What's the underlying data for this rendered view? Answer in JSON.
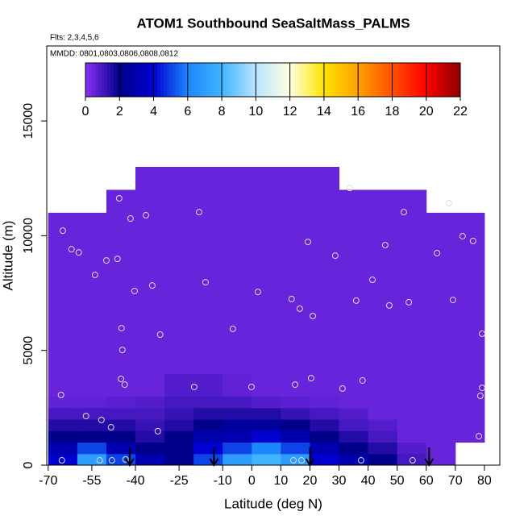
{
  "chart_data": {
    "type": "heatmap",
    "title": "ATOM1 Southbound SeaSaltMass_PALMS",
    "subtitle_flights": "Flts: 2,3,4,5,6",
    "subtitle_dates": "MMDD: 0801,0803,0806,0808,0812",
    "xlabel": "Latitude (deg N)",
    "ylabel": "Altitude (m)",
    "xlim": [
      -70.5,
      85.3
    ],
    "ylim": [
      0,
      18270
    ],
    "xticks": [
      -70,
      -55,
      -40,
      -25,
      -10,
      0,
      10,
      20,
      30,
      40,
      50,
      60,
      70,
      80
    ],
    "yticks": [
      0,
      5000,
      10000,
      15000
    ],
    "x_edges": [
      -70,
      -60,
      -50,
      -40,
      -30,
      -20,
      -10,
      0,
      10,
      20,
      30,
      40,
      50,
      60,
      70,
      80
    ],
    "y_edges": [
      0,
      500,
      1000,
      1500,
      2000,
      2500,
      3000,
      4000,
      6000,
      8000,
      10000,
      11000,
      12000,
      13000
    ],
    "z": [
      [
        4,
        7,
        5,
        3,
        2,
        5,
        7,
        8,
        7,
        4,
        3,
        2,
        1,
        0.5,
        null
      ],
      [
        3,
        5,
        3,
        2,
        2,
        4,
        5,
        6,
        5,
        3,
        2,
        1.5,
        0.8,
        0.5,
        null
      ],
      [
        2,
        2,
        2,
        1.5,
        2,
        3,
        3,
        4,
        3,
        2,
        1.5,
        1,
        0.5,
        0.5,
        0.5
      ],
      [
        1.5,
        1.5,
        1.5,
        1.2,
        1.5,
        2,
        2.5,
        2.5,
        2,
        1.5,
        1,
        0.8,
        0.5,
        0.5,
        0.5
      ],
      [
        1,
        1,
        1,
        1,
        1.2,
        1.5,
        1.5,
        1.5,
        1.2,
        1,
        0.8,
        0.5,
        0.5,
        0.5,
        0.5
      ],
      [
        0.6,
        0.6,
        0.7,
        0.8,
        1,
        1,
        1,
        0.8,
        0.7,
        0.6,
        0.5,
        0.5,
        0.5,
        0.5,
        0.5
      ],
      [
        0.5,
        0.5,
        0.5,
        0.5,
        0.8,
        0.8,
        0.6,
        0.5,
        0.5,
        0.5,
        0.5,
        0.5,
        0.5,
        0.5,
        0.5
      ],
      [
        0.5,
        0.5,
        0.5,
        0.5,
        0.5,
        0.5,
        0.5,
        0.5,
        0.5,
        0.5,
        0.5,
        0.5,
        0.5,
        0.5,
        0.5
      ],
      [
        0.5,
        0.5,
        0.5,
        0.5,
        0.5,
        0.5,
        0.5,
        0.5,
        0.5,
        0.5,
        0.5,
        0.5,
        0.5,
        0.5,
        0.5
      ],
      [
        0.5,
        0.5,
        0.5,
        0.5,
        0.5,
        0.5,
        0.5,
        0.5,
        0.5,
        0.5,
        0.5,
        0.5,
        0.5,
        0.5,
        0.5
      ],
      [
        0.5,
        0.5,
        0.5,
        0.5,
        0.5,
        0.5,
        0.5,
        0.5,
        0.5,
        0.5,
        0.5,
        0.5,
        0.5,
        0.5,
        0.5
      ],
      [
        null,
        null,
        0.5,
        0.5,
        0.5,
        0.5,
        0.5,
        0.5,
        0.5,
        0.5,
        0.5,
        0.5,
        0.5,
        null,
        null
      ],
      [
        null,
        null,
        null,
        0.5,
        0.5,
        0.5,
        0.5,
        0.5,
        0.5,
        0.5,
        null,
        null,
        null,
        null,
        null
      ]
    ],
    "samples": {
      "color": "#dddddd",
      "x": [
        -65.0,
        -65.6,
        -62.0,
        -59.5,
        -57.0,
        -53.9,
        -51.7,
        -50.0,
        -48.4,
        -46.2,
        -45.6,
        -45.0,
        -44.8,
        -44.5,
        -43.7,
        -43.4,
        -48.1,
        -52.3,
        -65.3,
        -41.7,
        -40.3,
        -36.4,
        -34.2,
        -32.3,
        -31.5,
        -19.8,
        -18.1,
        -15.9,
        -6.5,
        -0.1,
        2.1,
        13.7,
        14.9,
        16.5,
        17.1,
        14.3,
        20.4,
        21.0,
        19.3,
        28.7,
        31.2,
        33.7,
        35.9,
        38.1,
        37.6,
        41.5,
        45.9,
        47.3,
        52.3,
        54.0,
        55.3,
        63.7,
        67.8,
        69.2,
        72.5,
        76.1,
        78.1,
        78.6,
        79.2,
        79.2
      ],
      "y": [
        10220,
        3060,
        9410,
        9270,
        2140,
        8290,
        1970,
        8920,
        1650,
        8990,
        11630,
        3760,
        5970,
        5020,
        3510,
        250,
        210,
        210,
        210,
        10750,
        7590,
        10890,
        7830,
        1480,
        5690,
        3410,
        11030,
        7970,
        5940,
        3410,
        7550,
        7240,
        3510,
        6820,
        210,
        210,
        3790,
        6500,
        9730,
        9130,
        3340,
        12080,
        7170,
        3690,
        210,
        8080,
        9590,
        6960,
        11030,
        7100,
        210,
        9240,
        11420,
        7200,
        9980,
        9770,
        1260,
        3020,
        3370,
        5730
      ]
    },
    "arrows_x": [
      -42,
      -13,
      20,
      61
    ],
    "colorbar": {
      "lim": [
        0,
        22
      ],
      "ticks": [
        0,
        2,
        4,
        6,
        8,
        10,
        12,
        14,
        16,
        18,
        20,
        22
      ],
      "colors": [
        "#8a30f5",
        "#00008b",
        "#0000d0",
        "#1c86ff",
        "#40b4ff",
        "#b8e4ff",
        "#ffffe0",
        "#ffe400",
        "#ffa000",
        "#ff5000",
        "#ff0000",
        "#8b0000"
      ]
    }
  }
}
